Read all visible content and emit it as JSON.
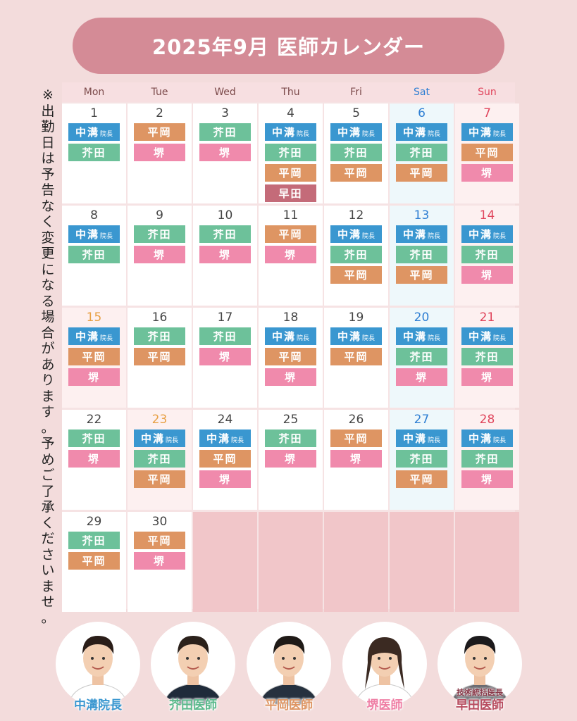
{
  "title": "2025年9月 医師カレンダー",
  "note": "※出勤日は予告なく変更になる場合があります。予めご了承くださいませ。",
  "weekdays": [
    "Mon",
    "Tue",
    "Wed",
    "Thu",
    "Fri",
    "Sat",
    "Sun"
  ],
  "colors": {
    "naka": "#3a97d0",
    "akuta": "#6dc19a",
    "hiraoka": "#de9563",
    "sakai": "#f08aac",
    "waseda": "#c46b79",
    "sat": "#2f7fd3",
    "sun": "#e0455c",
    "holiday": "#e8a044"
  },
  "doctors": {
    "naka": {
      "short": "中溝",
      "suffix": "院長",
      "full": "中溝院長"
    },
    "akuta": {
      "short": "芥田",
      "full": "芥田医師"
    },
    "hiraoka": {
      "short": "平岡",
      "full": "平岡医師"
    },
    "sakai": {
      "short": "堺",
      "full": "堺医師"
    },
    "waseda": {
      "short": "早田",
      "full": "早田医師",
      "title": "技術統括医長"
    }
  },
  "days": [
    {
      "day": "1",
      "doctors": [
        "naka",
        "akuta"
      ]
    },
    {
      "day": "2",
      "doctors": [
        "hiraoka",
        "sakai"
      ]
    },
    {
      "day": "3",
      "doctors": [
        "akuta",
        "sakai"
      ]
    },
    {
      "day": "4",
      "doctors": [
        "naka",
        "akuta",
        "hiraoka",
        "waseda"
      ]
    },
    {
      "day": "5",
      "doctors": [
        "naka",
        "akuta",
        "hiraoka"
      ]
    },
    {
      "day": "6",
      "doctors": [
        "naka",
        "akuta",
        "hiraoka"
      ]
    },
    {
      "day": "7",
      "doctors": [
        "naka",
        "hiraoka",
        "sakai"
      ]
    },
    {
      "day": "8",
      "doctors": [
        "naka",
        "akuta"
      ]
    },
    {
      "day": "9",
      "doctors": [
        "akuta",
        "sakai"
      ]
    },
    {
      "day": "10",
      "doctors": [
        "akuta",
        "sakai"
      ]
    },
    {
      "day": "11",
      "doctors": [
        "hiraoka",
        "sakai"
      ]
    },
    {
      "day": "12",
      "doctors": [
        "naka",
        "akuta",
        "hiraoka"
      ]
    },
    {
      "day": "13",
      "doctors": [
        "naka",
        "akuta",
        "hiraoka"
      ]
    },
    {
      "day": "14",
      "doctors": [
        "naka",
        "akuta",
        "sakai"
      ]
    },
    {
      "day": "15",
      "holiday": true,
      "doctors": [
        "naka",
        "hiraoka",
        "sakai"
      ]
    },
    {
      "day": "16",
      "doctors": [
        "akuta",
        "hiraoka"
      ]
    },
    {
      "day": "17",
      "doctors": [
        "akuta",
        "sakai"
      ]
    },
    {
      "day": "18",
      "doctors": [
        "naka",
        "hiraoka",
        "sakai"
      ]
    },
    {
      "day": "19",
      "doctors": [
        "naka",
        "hiraoka"
      ]
    },
    {
      "day": "20",
      "doctors": [
        "naka",
        "akuta",
        "sakai"
      ]
    },
    {
      "day": "21",
      "doctors": [
        "naka",
        "akuta",
        "sakai"
      ]
    },
    {
      "day": "22",
      "doctors": [
        "akuta",
        "sakai"
      ]
    },
    {
      "day": "23",
      "holiday": true,
      "doctors": [
        "naka",
        "akuta",
        "hiraoka"
      ]
    },
    {
      "day": "24",
      "doctors": [
        "naka",
        "hiraoka",
        "sakai"
      ]
    },
    {
      "day": "25",
      "doctors": [
        "akuta",
        "sakai"
      ]
    },
    {
      "day": "26",
      "doctors": [
        "hiraoka",
        "sakai"
      ]
    },
    {
      "day": "27",
      "doctors": [
        "naka",
        "akuta",
        "hiraoka"
      ]
    },
    {
      "day": "28",
      "doctors": [
        "naka",
        "akuta",
        "sakai"
      ]
    },
    {
      "day": "29",
      "doctors": [
        "akuta",
        "hiraoka"
      ]
    },
    {
      "day": "30",
      "doctors": [
        "hiraoka",
        "sakai"
      ]
    }
  ],
  "legend": [
    {
      "key": "naka",
      "label": "中溝院長",
      "color": "#3a97d0"
    },
    {
      "key": "akuta",
      "label": "芥田医師",
      "color": "#5bb98c"
    },
    {
      "key": "hiraoka",
      "label": "平岡医師",
      "color": "#de9563"
    },
    {
      "key": "sakai",
      "label": "堺医師",
      "color": "#ef7fa5"
    },
    {
      "key": "waseda",
      "label": "早田医師",
      "title": "技術統括医長",
      "color": "#b84d60"
    }
  ]
}
